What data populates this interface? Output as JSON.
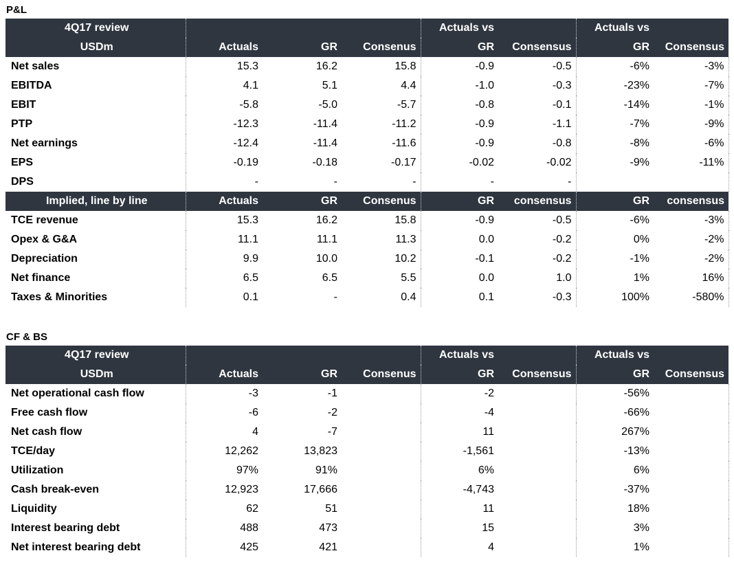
{
  "pl": {
    "title": "P&L",
    "header_rows": [
      [
        "4Q17 review",
        "",
        "",
        "",
        "Actuals vs",
        "",
        "Actuals vs",
        ""
      ],
      [
        "USDm",
        "Actuals",
        "GR",
        "Consenus",
        "GR",
        "Consensus",
        "GR",
        "Consensus"
      ]
    ],
    "rows": [
      [
        "Net sales",
        "15.3",
        "16.2",
        "15.8",
        "-0.9",
        "-0.5",
        "-6%",
        "-3%"
      ],
      [
        "EBITDA",
        "4.1",
        "5.1",
        "4.4",
        "-1.0",
        "-0.3",
        "-23%",
        "-7%"
      ],
      [
        "EBIT",
        "-5.8",
        "-5.0",
        "-5.7",
        "-0.8",
        "-0.1",
        "-14%",
        "-1%"
      ],
      [
        "PTP",
        "-12.3",
        "-11.4",
        "-11.2",
        "-0.9",
        "-1.1",
        "-7%",
        "-9%"
      ],
      [
        "Net earnings",
        "-12.4",
        "-11.4",
        "-11.6",
        "-0.9",
        "-0.8",
        "-8%",
        "-6%"
      ],
      [
        "EPS",
        "-0.19",
        "-0.18",
        "-0.17",
        "-0.02",
        "-0.02",
        "-9%",
        "-11%"
      ],
      [
        "DPS",
        "-",
        "-",
        "-",
        "-",
        "-",
        "",
        ""
      ]
    ],
    "implied_header": [
      "Implied, line by line",
      "Actuals",
      "GR",
      "Consenus",
      "GR",
      "consensus",
      "GR",
      "consensus"
    ],
    "implied_rows": [
      [
        "TCE revenue",
        "15.3",
        "16.2",
        "15.8",
        "-0.9",
        "-0.5",
        "-6%",
        "-3%"
      ],
      [
        "Opex & G&A",
        "11.1",
        "11.1",
        "11.3",
        "0.0",
        "-0.2",
        "0%",
        "-2%"
      ],
      [
        "Depreciation",
        "9.9",
        "10.0",
        "10.2",
        "-0.1",
        "-0.2",
        "-1%",
        "-2%"
      ],
      [
        "Net finance",
        "6.5",
        "6.5",
        "5.5",
        "0.0",
        "1.0",
        "1%",
        "16%"
      ],
      [
        "Taxes & Minorities",
        "0.1",
        "-",
        "0.4",
        "0.1",
        "-0.3",
        "100%",
        "-580%"
      ]
    ]
  },
  "cfbs": {
    "title": "CF & BS",
    "header_rows": [
      [
        "4Q17 review",
        "",
        "",
        "",
        "Actuals vs",
        "",
        "Actuals vs",
        ""
      ],
      [
        "USDm",
        "Actuals",
        "GR",
        "Consenus",
        "GR",
        "Consensus",
        "GR",
        "Consensus"
      ]
    ],
    "rows": [
      [
        "Net operational cash flow",
        "-3",
        "-1",
        "",
        "-2",
        "",
        "-56%",
        ""
      ],
      [
        "Free cash flow",
        "-6",
        "-2",
        "",
        "-4",
        "",
        "-66%",
        ""
      ],
      [
        "Net cash flow",
        "4",
        "-7",
        "",
        "11",
        "",
        "267%",
        ""
      ],
      [
        "TCE/day",
        "12,262",
        "13,823",
        "",
        "-1,561",
        "",
        "-13%",
        ""
      ],
      [
        "Utilization",
        "97%",
        "91%",
        "",
        "6%",
        "",
        "6%",
        ""
      ],
      [
        "Cash break-even",
        "12,923",
        "17,666",
        "",
        "-4,743",
        "",
        "-37%",
        ""
      ],
      [
        "Liquidity",
        "62",
        "51",
        "",
        "11",
        "",
        "18%",
        ""
      ],
      [
        "Interest bearing debt",
        "488",
        "473",
        "",
        "15",
        "",
        "3%",
        ""
      ],
      [
        "Net interest bearing debt",
        "425",
        "421",
        "",
        "4",
        "",
        "1%",
        ""
      ]
    ]
  }
}
